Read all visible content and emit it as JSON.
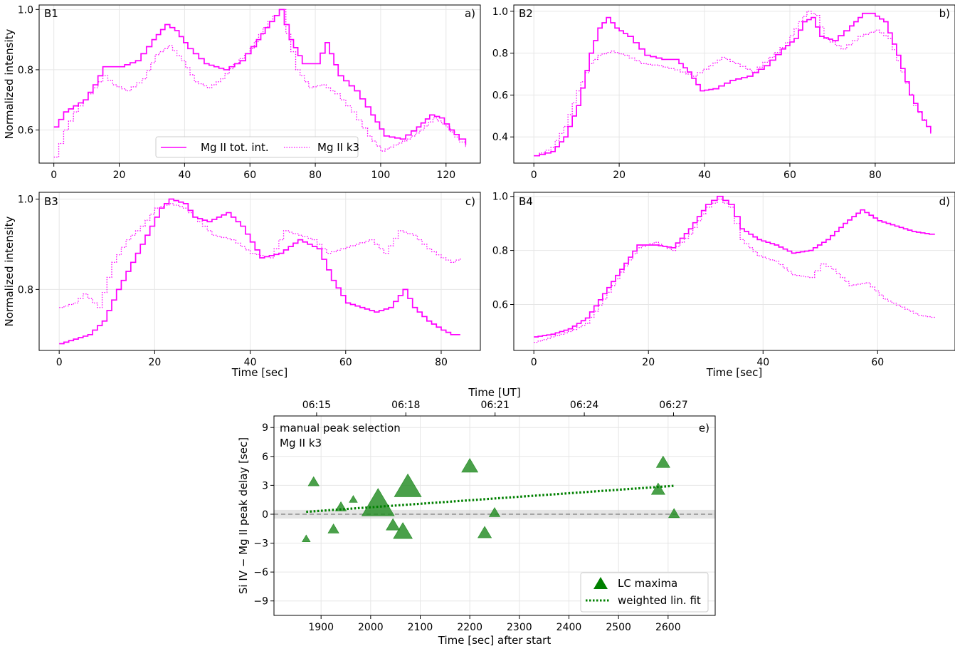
{
  "chart_data": [
    {
      "id": "a",
      "type": "line",
      "panel_label": "B1",
      "corner_label": "a)",
      "xlabel": "",
      "ylabel": "Normalized intensity",
      "xlim": [
        -4.5,
        130.5
      ],
      "ylim": [
        0.49,
        1.015
      ],
      "xticks": [
        0,
        20,
        40,
        60,
        80,
        100,
        120
      ],
      "yticks": [
        0.6,
        0.8,
        1.0
      ],
      "ytick_labels": [
        "0.6",
        "0.8",
        "1.0"
      ],
      "legend": {
        "position": "bottom-center",
        "entries": [
          "Mg II tot. int.",
          "Mg II k3"
        ]
      },
      "series": [
        {
          "name": "Mg II tot. int.",
          "style": "solid",
          "color": "#ff00ff",
          "x": [
            0,
            3,
            6,
            9,
            12,
            15,
            20,
            25,
            30,
            34,
            37,
            41,
            46,
            52,
            57,
            62,
            66,
            69,
            72,
            76,
            80,
            83,
            87,
            92,
            97,
            101,
            106,
            111,
            115,
            118,
            121,
            124,
            126
          ],
          "y": [
            0.61,
            0.66,
            0.68,
            0.7,
            0.75,
            0.81,
            0.81,
            0.83,
            0.9,
            0.95,
            0.93,
            0.87,
            0.82,
            0.8,
            0.83,
            0.9,
            0.96,
            1.0,
            0.9,
            0.82,
            0.82,
            0.89,
            0.78,
            0.73,
            0.65,
            0.58,
            0.57,
            0.61,
            0.65,
            0.64,
            0.6,
            0.57,
            0.55
          ]
        },
        {
          "name": "Mg II k3",
          "style": "dotted",
          "color": "#ff00ff",
          "x": [
            0,
            3,
            6,
            9,
            12,
            15,
            18,
            22,
            27,
            31,
            35,
            39,
            43,
            47,
            51,
            55,
            60,
            64,
            67,
            69,
            71,
            74,
            78,
            82,
            86,
            91,
            96,
            100,
            104,
            108,
            112,
            116,
            120,
            124,
            126
          ],
          "y": [
            0.51,
            0.6,
            0.66,
            0.7,
            0.74,
            0.78,
            0.75,
            0.73,
            0.77,
            0.85,
            0.88,
            0.83,
            0.76,
            0.74,
            0.77,
            0.82,
            0.87,
            0.94,
            0.98,
            1.0,
            0.92,
            0.8,
            0.74,
            0.75,
            0.72,
            0.66,
            0.58,
            0.53,
            0.55,
            0.57,
            0.6,
            0.64,
            0.61,
            0.56,
            0.54
          ]
        }
      ]
    },
    {
      "id": "b",
      "type": "line",
      "panel_label": "B2",
      "corner_label": "b)",
      "xlabel": "",
      "ylabel": "",
      "xlim": [
        -4.7,
        98.7
      ],
      "ylim": [
        0.275,
        1.03
      ],
      "xticks": [
        0,
        20,
        40,
        60,
        80
      ],
      "yticks": [
        0.4,
        0.6,
        0.8,
        1.0
      ],
      "ytick_labels": [
        "0.4",
        "0.6",
        "0.8",
        "1.0"
      ],
      "series": [
        {
          "name": "Mg II tot. int.",
          "style": "solid",
          "color": "#ff00ff",
          "x": [
            0,
            4,
            7,
            10,
            13,
            15,
            17,
            19,
            22,
            26,
            30,
            33,
            36,
            39,
            42,
            46,
            50,
            54,
            58,
            61,
            63,
            65,
            67,
            70,
            74,
            77,
            79,
            82,
            85,
            88,
            91,
            93
          ],
          "y": [
            0.31,
            0.33,
            0.4,
            0.55,
            0.8,
            0.92,
            0.97,
            0.92,
            0.88,
            0.79,
            0.77,
            0.77,
            0.71,
            0.62,
            0.63,
            0.67,
            0.69,
            0.74,
            0.82,
            0.87,
            0.95,
            0.97,
            0.88,
            0.86,
            0.93,
            0.99,
            0.99,
            0.95,
            0.79,
            0.6,
            0.48,
            0.42
          ]
        },
        {
          "name": "Mg II k3",
          "style": "dotted",
          "color": "#ff00ff",
          "x": [
            0,
            4,
            7,
            10,
            13,
            15,
            18,
            21,
            25,
            29,
            33,
            37,
            41,
            44,
            47,
            51,
            55,
            59,
            62,
            64,
            66,
            68,
            72,
            76,
            80,
            83,
            86,
            89,
            92,
            93
          ],
          "y": [
            0.31,
            0.35,
            0.45,
            0.62,
            0.75,
            0.79,
            0.81,
            0.79,
            0.75,
            0.74,
            0.72,
            0.69,
            0.74,
            0.78,
            0.75,
            0.71,
            0.78,
            0.85,
            0.95,
            1.0,
            0.98,
            0.87,
            0.82,
            0.88,
            0.91,
            0.87,
            0.71,
            0.55,
            0.45,
            0.41
          ]
        }
      ]
    },
    {
      "id": "c",
      "type": "line",
      "panel_label": "B3",
      "corner_label": "c)",
      "xlabel": "Time [sec]",
      "ylabel": "Normalized intensity",
      "xlim": [
        -4.2,
        88.2
      ],
      "ylim": [
        0.665,
        1.015
      ],
      "xticks": [
        0,
        20,
        40,
        60,
        80
      ],
      "yticks": [
        0.8,
        1.0
      ],
      "ytick_labels": [
        "0.8",
        "1.0"
      ],
      "series": [
        {
          "name": "Mg II tot. int.",
          "style": "solid",
          "color": "#ff00ff",
          "x": [
            0,
            3,
            6,
            9,
            12,
            15,
            18,
            21,
            23,
            26,
            28,
            31,
            35,
            38,
            42,
            46,
            50,
            54,
            57,
            60,
            63,
            66,
            69,
            72,
            74,
            77,
            80,
            82,
            84
          ],
          "y": [
            0.68,
            0.69,
            0.7,
            0.73,
            0.8,
            0.86,
            0.92,
            0.98,
            1.0,
            0.99,
            0.96,
            0.95,
            0.97,
            0.94,
            0.87,
            0.88,
            0.91,
            0.89,
            0.82,
            0.77,
            0.76,
            0.75,
            0.76,
            0.8,
            0.76,
            0.73,
            0.71,
            0.7,
            0.7
          ]
        },
        {
          "name": "Mg II k3",
          "style": "dotted",
          "color": "#ff00ff",
          "x": [
            0,
            3,
            5,
            8,
            11,
            14,
            17,
            20,
            23,
            26,
            29,
            32,
            36,
            40,
            44,
            47,
            50,
            53,
            56,
            59,
            62,
            65,
            68,
            71,
            74,
            77,
            80,
            82,
            84
          ],
          "y": [
            0.76,
            0.77,
            0.79,
            0.76,
            0.86,
            0.91,
            0.94,
            0.98,
            0.99,
            0.98,
            0.95,
            0.92,
            0.91,
            0.88,
            0.87,
            0.93,
            0.92,
            0.91,
            0.88,
            0.89,
            0.9,
            0.91,
            0.88,
            0.93,
            0.92,
            0.89,
            0.87,
            0.86,
            0.87
          ]
        }
      ]
    },
    {
      "id": "d",
      "type": "line",
      "panel_label": "B4",
      "corner_label": "d)",
      "xlabel": "Time [sec]",
      "ylabel": "",
      "xlim": [
        -3.5,
        73.5
      ],
      "ylim": [
        0.43,
        1.015
      ],
      "xticks": [
        0,
        20,
        40,
        60
      ],
      "yticks": [
        0.6,
        0.8,
        1.0
      ],
      "ytick_labels": [
        "0.6",
        "0.8",
        "1.0"
      ],
      "series": [
        {
          "name": "Mg II tot. int.",
          "style": "solid",
          "color": "#ff00ff",
          "x": [
            0,
            3,
            6,
            9,
            12,
            15,
            18,
            21,
            24,
            27,
            30,
            32,
            34,
            36,
            39,
            42,
            45,
            48,
            51,
            54,
            57,
            60,
            63,
            66,
            69,
            70
          ],
          "y": [
            0.48,
            0.49,
            0.51,
            0.55,
            0.64,
            0.73,
            0.82,
            0.82,
            0.81,
            0.88,
            0.97,
            1.0,
            0.97,
            0.88,
            0.84,
            0.82,
            0.79,
            0.8,
            0.84,
            0.9,
            0.95,
            0.91,
            0.89,
            0.87,
            0.86,
            0.86
          ]
        },
        {
          "name": "Mg II k3",
          "style": "dotted",
          "color": "#ff00ff",
          "x": [
            0,
            3,
            6,
            9,
            12,
            15,
            18,
            21,
            24,
            27,
            30,
            32,
            34,
            36,
            39,
            42,
            45,
            48,
            50,
            52,
            55,
            58,
            61,
            64,
            67,
            70
          ],
          "y": [
            0.46,
            0.48,
            0.5,
            0.53,
            0.62,
            0.72,
            0.81,
            0.83,
            0.8,
            0.86,
            0.96,
            0.99,
            0.96,
            0.84,
            0.78,
            0.76,
            0.71,
            0.7,
            0.75,
            0.73,
            0.67,
            0.68,
            0.62,
            0.59,
            0.56,
            0.55
          ]
        }
      ]
    },
    {
      "id": "e",
      "type": "scatter",
      "corner_label": "e)",
      "annotation_lines": [
        "manual peak selection",
        "Mg II k3"
      ],
      "title": "Time [UT]",
      "xlabel": "Time [sec] after start",
      "ylabel": "Si IV − Mg II peak delay [sec]",
      "xlim": [
        1805,
        2695
      ],
      "ylim": [
        -10.5,
        10.2
      ],
      "xticks": [
        1900,
        2000,
        2100,
        2200,
        2300,
        2400,
        2500,
        2600
      ],
      "yticks": [
        -9,
        -6,
        -3,
        0,
        3,
        6,
        9
      ],
      "ytick_labels": [
        "−9",
        "−6",
        "−3",
        "0",
        "3",
        "6",
        "9"
      ],
      "top_axis": {
        "ticks": [
          1891,
          2071,
          2251,
          2431,
          2611
        ],
        "labels": [
          "06:15",
          "06:18",
          "06:21",
          "06:24",
          "06:27"
        ]
      },
      "zero_band": [
        -0.45,
        0.45
      ],
      "points": {
        "name": "LC maxima",
        "color": "#228b22",
        "x": [
          1870,
          1885,
          1925,
          1940,
          1965,
          2015,
          2045,
          2065,
          2075,
          2200,
          2230,
          2250,
          2580,
          2590,
          2612
        ],
        "y": [
          -2.6,
          3.3,
          -1.6,
          0.7,
          1.5,
          0.9,
          -1.2,
          -1.9,
          2.7,
          4.9,
          -2.0,
          0.1,
          2.5,
          5.3,
          0.0
        ],
        "weight": [
          6,
          8,
          8,
          8,
          6,
          24,
          10,
          14,
          20,
          12,
          10,
          8,
          10,
          10,
          8
        ]
      },
      "fit": {
        "name": "weighted lin. fit",
        "style": "dotted",
        "color": "#008000",
        "x": [
          1870,
          2612
        ],
        "y": [
          0.25,
          2.95
        ]
      },
      "legend": {
        "position": "bottom-right",
        "entries": [
          "LC maxima",
          "weighted lin. fit"
        ]
      }
    }
  ]
}
